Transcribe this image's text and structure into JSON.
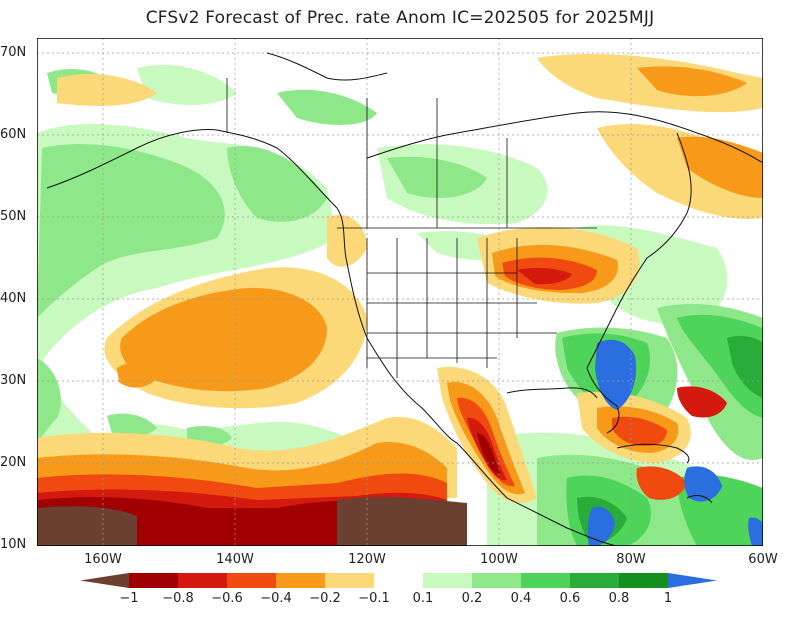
{
  "title": "CFSv2 Forecast of Prec. rate Anom IC=202505 for 2025MJJ",
  "lat_labels": [
    "70N",
    "60N",
    "50N",
    "40N",
    "30N",
    "20N",
    "10N"
  ],
  "lon_labels": [
    "160W",
    "140W",
    "120W",
    "100W",
    "80W",
    "60W"
  ],
  "colorbar": {
    "labels": [
      "−1",
      "−0.8",
      "−0.6",
      "−0.4",
      "−0.2",
      "−0.1",
      "0.1",
      "0.2",
      "0.4",
      "0.6",
      "0.8",
      "1"
    ],
    "colors": [
      "#6b4030",
      "#a00000",
      "#d41a0e",
      "#f04a10",
      "#f79a1a",
      "#fbd878",
      "#ffffff",
      "#c8fac0",
      "#8ee88a",
      "#4ed45a",
      "#2aac3a",
      "#14901e",
      "#2a6ee0"
    ]
  },
  "map_colors": {
    "deep_neg": "#6b4030",
    "neg_08": "#a00000",
    "neg_06": "#d41a0e",
    "neg_04": "#f04a10",
    "neg_02": "#f79a1a",
    "neg_01": "#fbd878",
    "pos_01": "#c8fac0",
    "pos_02": "#8ee88a",
    "pos_04": "#4ed45a",
    "pos_06": "#2aac3a",
    "pos_10": "#2a6ee0"
  }
}
